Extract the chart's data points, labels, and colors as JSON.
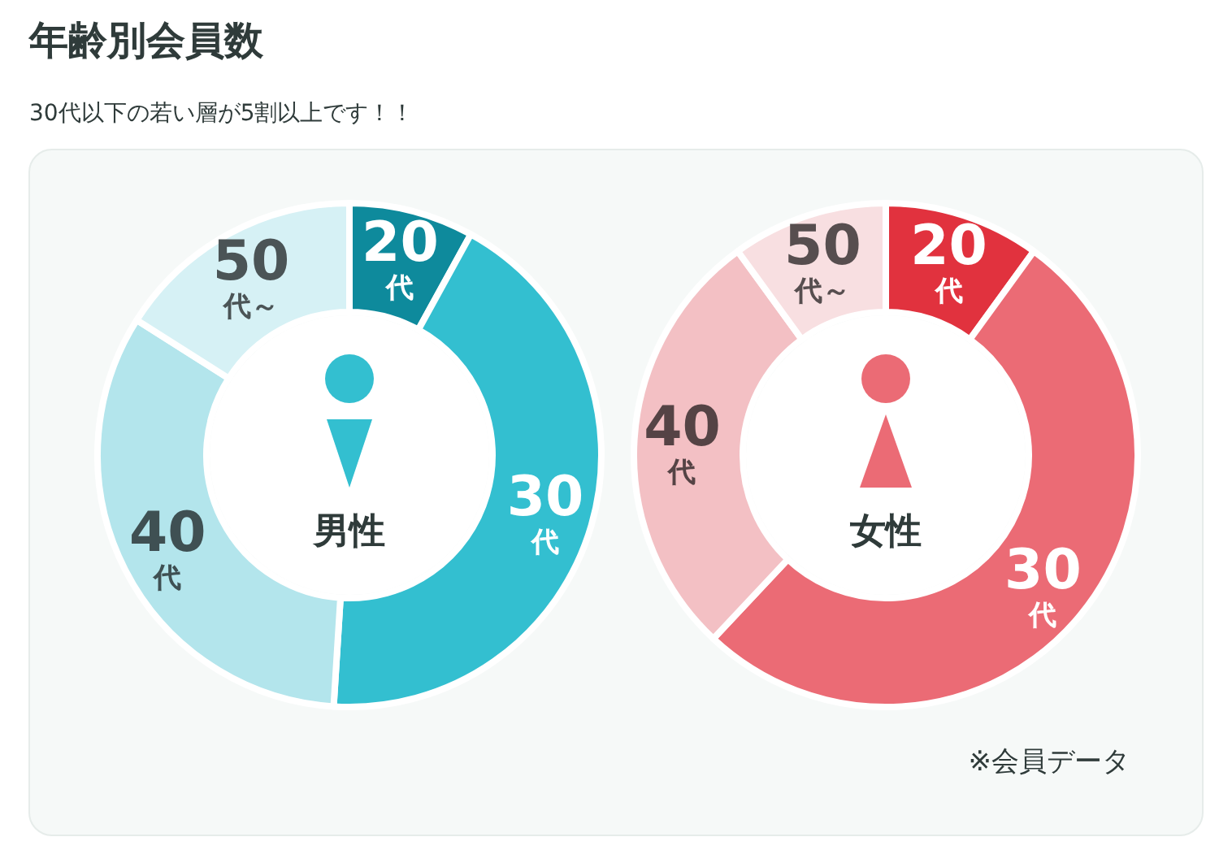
{
  "chart_data": [
    {
      "type": "other",
      "title": "年齢別会員数",
      "subtitle": "30代以下の若い層が5割以上です！！",
      "annotations": [
        "※会員データ"
      ]
    },
    {
      "type": "donut",
      "title": "男性",
      "categories": [
        "20代",
        "30代",
        "40代",
        "50代～"
      ],
      "values": [
        8,
        43,
        33,
        16
      ],
      "colors": [
        "#0e8a9c",
        "#33bfd0",
        "#b3e5ec",
        "#d6f1f5"
      ]
    },
    {
      "type": "donut",
      "title": "女性",
      "categories": [
        "20代",
        "30代",
        "40代",
        "50代～"
      ],
      "values": [
        10,
        52,
        28,
        10
      ],
      "colors": [
        "#e1323e",
        "#eb6b75",
        "#f3c0c4",
        "#f8dfe1"
      ]
    }
  ]
}
